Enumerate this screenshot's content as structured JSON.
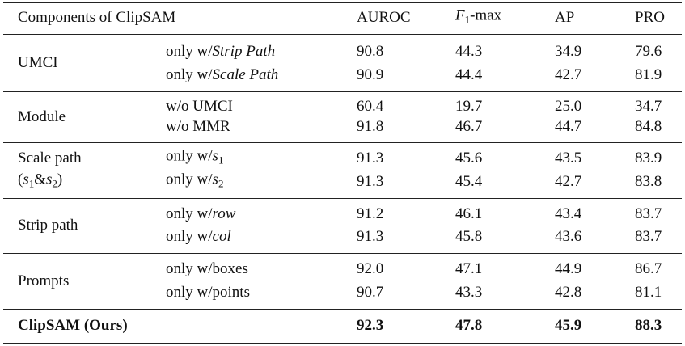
{
  "table": {
    "header": {
      "component": [
        {
          "text": "Components of ClipSAM"
        }
      ],
      "metrics": [
        [
          {
            "text": "AUROC"
          }
        ],
        [
          {
            "text": "F",
            "style": "italic"
          },
          {
            "text": "1",
            "style": "sub"
          },
          {
            "text": "-max"
          }
        ],
        [
          {
            "text": "AP"
          }
        ],
        [
          {
            "text": "PRO"
          }
        ]
      ]
    },
    "groups": [
      {
        "label": [
          [
            {
              "text": "UMCI"
            }
          ]
        ],
        "rows": [
          {
            "variant": [
              {
                "text": "only w/"
              },
              {
                "text": "Strip Path",
                "style": "italic"
              }
            ],
            "values": [
              "90.8",
              "44.3",
              "34.9",
              "79.6"
            ]
          },
          {
            "variant": [
              {
                "text": "only w/"
              },
              {
                "text": "Scale Path",
                "style": "italic"
              }
            ],
            "values": [
              "90.9",
              "44.4",
              "42.7",
              "81.9"
            ]
          }
        ]
      },
      {
        "label": [
          [
            {
              "text": "Module"
            }
          ]
        ],
        "rows": [
          {
            "variant": [
              {
                "text": "w/o UMCI"
              }
            ],
            "values": [
              "60.4",
              "19.7",
              "25.0",
              "34.7"
            ]
          },
          {
            "variant": [
              {
                "text": "w/o MMR"
              }
            ],
            "values": [
              "91.8",
              "46.7",
              "44.7",
              "84.8"
            ]
          }
        ]
      },
      {
        "label": [
          [
            {
              "text": "Scale path"
            }
          ],
          [
            {
              "text": "("
            },
            {
              "text": "s",
              "style": "italic"
            },
            {
              "text": "1",
              "style": "sub"
            },
            {
              "text": "&"
            },
            {
              "text": "s",
              "style": "italic"
            },
            {
              "text": "2",
              "style": "sub"
            },
            {
              "text": ")"
            }
          ]
        ],
        "rows": [
          {
            "variant": [
              {
                "text": "only w/"
              },
              {
                "text": "s",
                "style": "italic"
              },
              {
                "text": "1",
                "style": "sub"
              }
            ],
            "values": [
              "91.3",
              "45.6",
              "43.5",
              "83.9"
            ]
          },
          {
            "variant": [
              {
                "text": "only w/"
              },
              {
                "text": "s",
                "style": "italic"
              },
              {
                "text": "2",
                "style": "sub"
              }
            ],
            "values": [
              "91.3",
              "45.4",
              "42.7",
              "83.8"
            ]
          }
        ]
      },
      {
        "label": [
          [
            {
              "text": "Strip path"
            }
          ]
        ],
        "rows": [
          {
            "variant": [
              {
                "text": "only w/"
              },
              {
                "text": "row",
                "style": "italic"
              }
            ],
            "values": [
              "91.2",
              "46.1",
              "43.4",
              "83.7"
            ]
          },
          {
            "variant": [
              {
                "text": "only w/"
              },
              {
                "text": "col",
                "style": "italic"
              }
            ],
            "values": [
              "91.3",
              "45.8",
              "43.6",
              "83.7"
            ]
          }
        ]
      },
      {
        "label": [
          [
            {
              "text": "Prompts"
            }
          ]
        ],
        "rows": [
          {
            "variant": [
              {
                "text": "only w/boxes"
              }
            ],
            "values": [
              "92.0",
              "47.1",
              "44.9",
              "86.7"
            ]
          },
          {
            "variant": [
              {
                "text": "only w/points"
              }
            ],
            "values": [
              "90.7",
              "43.3",
              "42.8",
              "81.1"
            ]
          }
        ]
      }
    ],
    "final": {
      "label": [
        {
          "text": "ClipSAM (Ours)"
        }
      ],
      "values": [
        "92.3",
        "47.8",
        "45.9",
        "88.3"
      ]
    }
  }
}
